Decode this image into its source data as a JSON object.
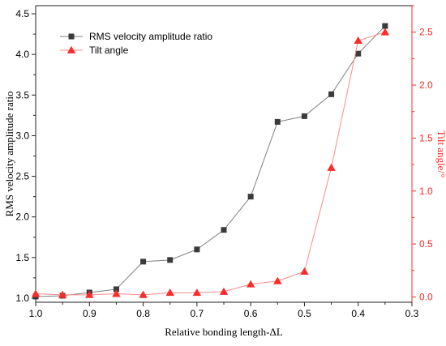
{
  "chart_data": {
    "type": "line",
    "x": [
      1.0,
      0.95,
      0.9,
      0.85,
      0.8,
      0.75,
      0.7,
      0.65,
      0.6,
      0.55,
      0.5,
      0.45,
      0.4,
      0.35
    ],
    "xlabel": "Relative bonding length-ΔL",
    "xlim": [
      1.0,
      0.3
    ],
    "x_reversed": true,
    "xticks": [
      "1.0",
      "0.9",
      "0.8",
      "0.7",
      "0.6",
      "0.5",
      "0.4",
      "0.3"
    ],
    "ylabel_left": "RMS velocity amplitude ratio",
    "ylim_left": [
      0.95,
      4.6
    ],
    "yticks_left": [
      "1.0",
      "1.5",
      "2.0",
      "2.5",
      "3.0",
      "3.5",
      "4.0",
      "4.5"
    ],
    "ylabel_right": "Tilt angle/°",
    "ylim_right": [
      -0.05,
      2.75
    ],
    "yticks_right": [
      "0.0",
      "0.5",
      "1.0",
      "1.5",
      "2.0",
      "2.5"
    ],
    "legend_position": "top-left",
    "grid": false,
    "series": [
      {
        "name": "RMS velocity amplitude ratio",
        "axis": "left",
        "color": "#7f7f7f",
        "marker_color": "#3a3a3a",
        "marker": "square",
        "values": [
          1.02,
          1.03,
          1.07,
          1.11,
          1.45,
          1.47,
          1.6,
          1.84,
          2.25,
          3.17,
          3.24,
          3.51,
          4.01,
          4.35
        ]
      },
      {
        "name": "Tilt angle",
        "axis": "right",
        "color": "#ff8a8a",
        "marker_color": "#ff2a2a",
        "marker": "triangle",
        "values": [
          0.03,
          0.02,
          0.02,
          0.03,
          0.02,
          0.04,
          0.04,
          0.05,
          0.12,
          0.15,
          0.24,
          1.22,
          2.42,
          2.5
        ]
      }
    ],
    "axis_colors": {
      "left": "#222222",
      "right": "#ff2a2a"
    }
  }
}
